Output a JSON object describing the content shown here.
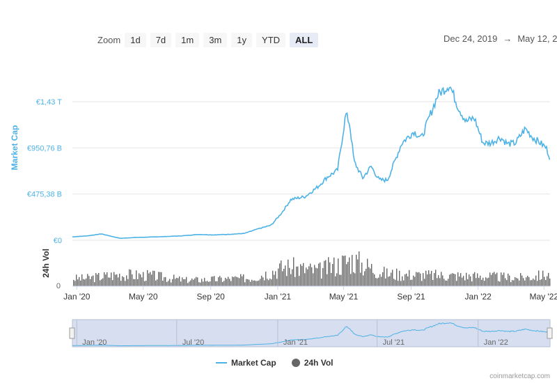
{
  "toolbar": {
    "zoom_label": "Zoom",
    "buttons": [
      "1d",
      "7d",
      "1m",
      "3m",
      "1y",
      "YTD",
      "ALL"
    ],
    "active": "ALL"
  },
  "range": {
    "from": "Dec 24, 2019",
    "arrow": "→",
    "to": "May 12, 2"
  },
  "legend": {
    "market_cap": "Market Cap",
    "vol": "24h Vol"
  },
  "credits": "coinmarketcap.com",
  "colors": {
    "line": "#4db2e6",
    "bars": "#666666",
    "navigator_fill": "#ccd6eb",
    "grid": "#e6e6e6"
  },
  "chart_data": {
    "type": "line",
    "ylabel": "Market Cap",
    "ylabel_volume": "24h Vol",
    "y_ticks": [
      "€0",
      "€475,38 B",
      "€950,76 B",
      "€1,43 T"
    ],
    "y_tick_values": [
      0,
      475.38,
      950.76,
      1426.14
    ],
    "volume_ticks": [
      "0"
    ],
    "x_ticks": [
      "Jan '20",
      "May '20",
      "Sep '20",
      "Jan '21",
      "May '21",
      "Sep '21",
      "Jan '22",
      "May '22"
    ],
    "navigator_ticks": [
      "Jan '20",
      "Jul '20",
      "Jan '21",
      "Jul '21",
      "Jan '22"
    ],
    "x_range": [
      "2019-12-24",
      "2022-05-12"
    ],
    "series": [
      {
        "name": "Market Cap",
        "unit": "€ B",
        "x": [
          "2019-12-24",
          "2020-01-20",
          "2020-02-15",
          "2020-03-12",
          "2020-03-20",
          "2020-04-15",
          "2020-05-10",
          "2020-06-10",
          "2020-07-10",
          "2020-08-10",
          "2020-09-05",
          "2020-10-01",
          "2020-11-01",
          "2020-11-25",
          "2020-12-20",
          "2021-01-08",
          "2021-01-25",
          "2021-02-20",
          "2021-03-15",
          "2021-04-01",
          "2021-04-20",
          "2021-05-05",
          "2021-05-12",
          "2021-05-20",
          "2021-06-05",
          "2021-06-20",
          "2021-07-05",
          "2021-07-20",
          "2021-08-15",
          "2021-09-06",
          "2021-09-20",
          "2021-10-05",
          "2021-10-20",
          "2021-11-10",
          "2021-11-25",
          "2021-12-10",
          "2021-12-25",
          "2022-01-10",
          "2022-01-24",
          "2022-02-10",
          "2022-02-24",
          "2022-03-10",
          "2022-03-28",
          "2022-04-10",
          "2022-04-25",
          "2022-05-05",
          "2022-05-12"
        ],
        "values": [
          35,
          45,
          65,
          30,
          20,
          28,
          32,
          38,
          45,
          60,
          55,
          60,
          70,
          115,
          155,
          280,
          420,
          450,
          550,
          650,
          720,
          1300,
          1200,
          810,
          640,
          760,
          620,
          620,
          1000,
          1120,
          1050,
          1280,
          1500,
          1600,
          1380,
          1220,
          1260,
          1000,
          1000,
          1060,
          990,
          1000,
          1150,
          1060,
          1000,
          950,
          850
        ]
      },
      {
        "name": "24h Vol",
        "note": "bar series in lower panel, relative heights",
        "x": [
          "2020-01",
          "2020-03",
          "2020-05",
          "2020-07",
          "2020-09",
          "2020-11",
          "2021-01",
          "2021-03",
          "2021-05",
          "2021-07",
          "2021-09",
          "2021-11",
          "2022-01",
          "2022-03",
          "2022-05"
        ],
        "values": [
          0.28,
          0.42,
          0.38,
          0.22,
          0.25,
          0.3,
          0.7,
          0.55,
          0.95,
          0.45,
          0.4,
          0.38,
          0.35,
          0.3,
          0.42
        ]
      }
    ],
    "grid": true,
    "legend_position": "bottom-center"
  }
}
